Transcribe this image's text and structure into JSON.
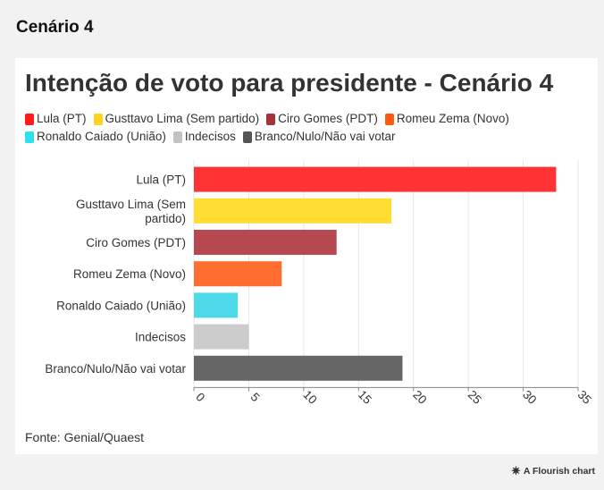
{
  "page": {
    "section_title": "Cenário 4"
  },
  "chart_data": {
    "type": "bar",
    "orientation": "horizontal",
    "title": "Intenção de voto para presidente - Cenário 4",
    "categories": [
      "Lula (PT)",
      "Gusttavo Lima (Sem partido)",
      "Ciro Gomes (PDT)",
      "Romeu Zema (Novo)",
      "Ronaldo Caiado (União)",
      "Indecisos",
      "Branco/Nulo/Não vai votar"
    ],
    "category_lines": [
      [
        "Lula (PT)"
      ],
      [
        "Gusttavo Lima (Sem",
        "partido)"
      ],
      [
        "Ciro Gomes (PDT)"
      ],
      [
        "Romeu Zema (Novo)"
      ],
      [
        "Ronaldo Caiado (União)"
      ],
      [
        "Indecisos"
      ],
      [
        "Branco/Nulo/Não vai votar"
      ]
    ],
    "values": [
      33,
      18,
      13,
      8,
      4,
      5,
      19
    ],
    "colors": [
      "#ff3333",
      "#ffdd33",
      "#b54850",
      "#ff6e2e",
      "#4dd9e8",
      "#cccccc",
      "#666666"
    ],
    "xlim": [
      0,
      35
    ],
    "xticks": [
      0,
      5,
      10,
      15,
      20,
      25,
      30,
      35
    ],
    "grid": true,
    "legend_position": "top",
    "legend": [
      {
        "label": "Lula (PT)",
        "color": "#ff1a1a"
      },
      {
        "label": "Gusttavo Lima (Sem partido)",
        "color": "#ffd21f"
      },
      {
        "label": "Ciro Gomes (PDT)",
        "color": "#a8323a"
      },
      {
        "label": "Romeu Zema (Novo)",
        "color": "#ff5a14"
      },
      {
        "label": "Ronaldo Caiado (União)",
        "color": "#2ee0ee"
      },
      {
        "label": "Indecisos",
        "color": "#c2c2c2"
      },
      {
        "label": "Branco/Nulo/Não vai votar",
        "color": "#555555"
      }
    ],
    "source": "Fonte: Genial/Quaest"
  },
  "footer": {
    "credit": "A Flourish chart",
    "icon": "flourish-icon"
  }
}
